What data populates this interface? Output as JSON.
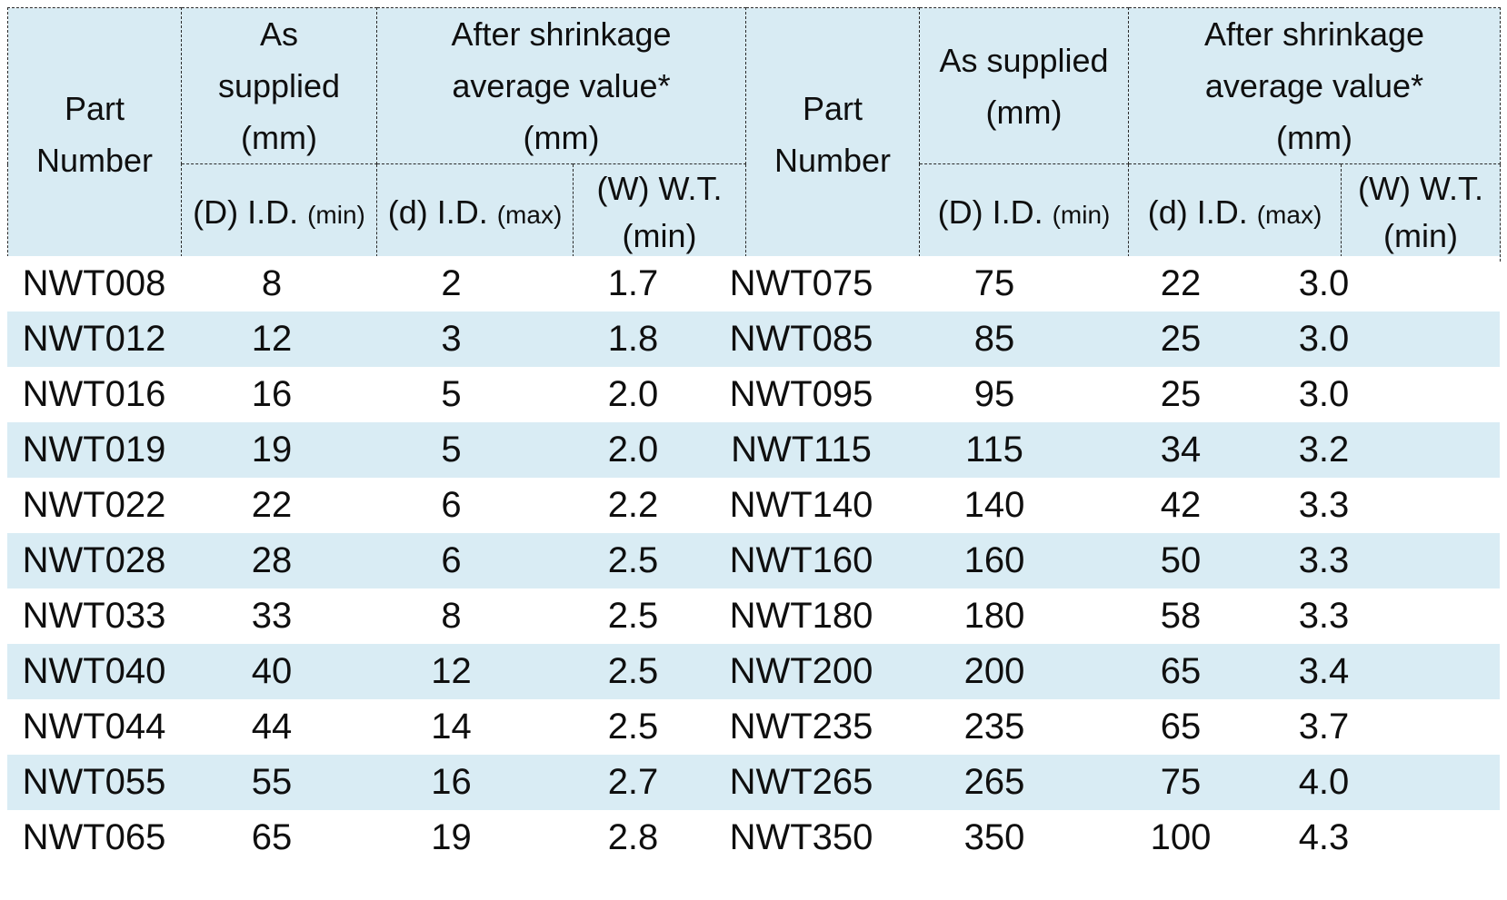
{
  "colors": {
    "page_bg": "#ffffff",
    "header_bg": "#d8ebf3",
    "stripe_bg": "#d9ecf4",
    "border": "#2a2a2a",
    "text": "#0f0f0f"
  },
  "header": {
    "part_number": [
      "Part",
      "Number"
    ],
    "as_supplied_left": [
      "As",
      "supplied",
      "(mm)"
    ],
    "as_supplied_right": [
      "As supplied",
      "(mm)"
    ],
    "after_shrinkage": [
      "After shrinkage",
      "average value*",
      "(mm)"
    ],
    "sub_d_main": "(D) I.D.",
    "sub_d_qual": "(min)",
    "sub_d2_main": "(d) I.D.",
    "sub_d2_qual": "(max)",
    "sub_w_line1": "(W) W.T.",
    "sub_w_line2": "(min)"
  },
  "rows": [
    {
      "left": {
        "part": "NWT008",
        "d_id_min": "8",
        "d_id_max": "2",
        "wt_min": "1.7"
      },
      "right": {
        "part": "NWT075",
        "d_id_min": "75",
        "d_id_max": "22",
        "wt_min": "3.0"
      }
    },
    {
      "left": {
        "part": "NWT012",
        "d_id_min": "12",
        "d_id_max": "3",
        "wt_min": "1.8"
      },
      "right": {
        "part": "NWT085",
        "d_id_min": "85",
        "d_id_max": "25",
        "wt_min": "3.0"
      }
    },
    {
      "left": {
        "part": "NWT016",
        "d_id_min": "16",
        "d_id_max": "5",
        "wt_min": "2.0"
      },
      "right": {
        "part": "NWT095",
        "d_id_min": "95",
        "d_id_max": "25",
        "wt_min": "3.0"
      }
    },
    {
      "left": {
        "part": "NWT019",
        "d_id_min": "19",
        "d_id_max": "5",
        "wt_min": "2.0"
      },
      "right": {
        "part": "NWT115",
        "d_id_min": "115",
        "d_id_max": "34",
        "wt_min": "3.2"
      }
    },
    {
      "left": {
        "part": "NWT022",
        "d_id_min": "22",
        "d_id_max": "6",
        "wt_min": "2.2"
      },
      "right": {
        "part": "NWT140",
        "d_id_min": "140",
        "d_id_max": "42",
        "wt_min": "3.3"
      }
    },
    {
      "left": {
        "part": "NWT028",
        "d_id_min": "28",
        "d_id_max": "6",
        "wt_min": "2.5"
      },
      "right": {
        "part": "NWT160",
        "d_id_min": "160",
        "d_id_max": "50",
        "wt_min": "3.3"
      }
    },
    {
      "left": {
        "part": "NWT033",
        "d_id_min": "33",
        "d_id_max": "8",
        "wt_min": "2.5"
      },
      "right": {
        "part": "NWT180",
        "d_id_min": "180",
        "d_id_max": "58",
        "wt_min": "3.3"
      }
    },
    {
      "left": {
        "part": "NWT040",
        "d_id_min": "40",
        "d_id_max": "12",
        "wt_min": "2.5"
      },
      "right": {
        "part": "NWT200",
        "d_id_min": "200",
        "d_id_max": "65",
        "wt_min": "3.4"
      }
    },
    {
      "left": {
        "part": "NWT044",
        "d_id_min": "44",
        "d_id_max": "14",
        "wt_min": "2.5"
      },
      "right": {
        "part": "NWT235",
        "d_id_min": "235",
        "d_id_max": "65",
        "wt_min": "3.7"
      }
    },
    {
      "left": {
        "part": "NWT055",
        "d_id_min": "55",
        "d_id_max": "16",
        "wt_min": "2.7"
      },
      "right": {
        "part": "NWT265",
        "d_id_min": "265",
        "d_id_max": "75",
        "wt_min": "4.0"
      }
    },
    {
      "left": {
        "part": "NWT065",
        "d_id_min": "65",
        "d_id_max": "19",
        "wt_min": "2.8"
      },
      "right": {
        "part": "NWT350",
        "d_id_min": "350",
        "d_id_max": "100",
        "wt_min": "4.3"
      }
    }
  ]
}
